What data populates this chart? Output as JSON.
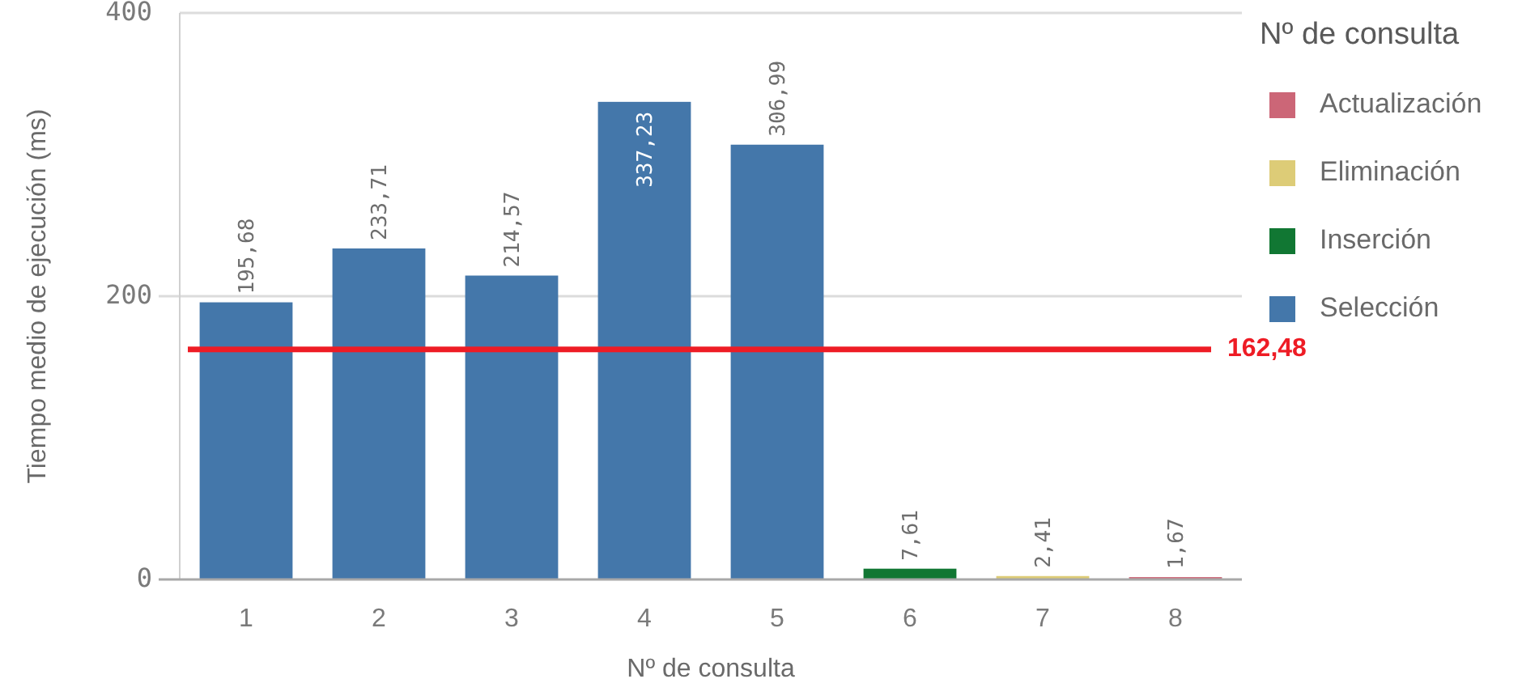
{
  "chart_data": {
    "type": "bar",
    "xlabel": "Nº de consulta",
    "ylabel": "Tiempo medio de ejecución (ms)",
    "legend_title": "Nº de consulta",
    "categories": [
      "1",
      "2",
      "3",
      "4",
      "5",
      "6",
      "7",
      "8"
    ],
    "stacked": true,
    "series": [
      {
        "name": "Actualización",
        "color": "#cc6677",
        "values": [
          null,
          null,
          null,
          null,
          null,
          null,
          null,
          1.67
        ],
        "value_labels": [
          null,
          null,
          null,
          null,
          null,
          null,
          null,
          "1,67"
        ]
      },
      {
        "name": "Eliminación",
        "color": "#ddcc77",
        "values": [
          null,
          null,
          null,
          null,
          null,
          null,
          2.41,
          null
        ],
        "value_labels": [
          null,
          null,
          null,
          null,
          null,
          null,
          "2,41",
          null
        ]
      },
      {
        "name": "Inserción",
        "color": "#117733",
        "values": [
          null,
          null,
          null,
          null,
          null,
          7.61,
          null,
          null
        ],
        "value_labels": [
          null,
          null,
          null,
          null,
          null,
          "7,61",
          null,
          null
        ]
      },
      {
        "name": "Selección",
        "color": "#4477aa",
        "values": [
          195.68,
          233.71,
          214.57,
          337.23,
          306.99,
          null,
          null,
          null
        ],
        "value_labels": [
          "195,68",
          "233,71",
          "214,57",
          "337,23",
          "306,99",
          null,
          null,
          null
        ]
      }
    ],
    "ylim": [
      0,
      400
    ],
    "yticks": [
      0,
      200,
      400
    ],
    "grid": "y",
    "legend": "top right",
    "ref_lines": [
      {
        "axis": "y",
        "value": 162.48,
        "label": "162,48",
        "color": "#ee1c25"
      }
    ]
  }
}
